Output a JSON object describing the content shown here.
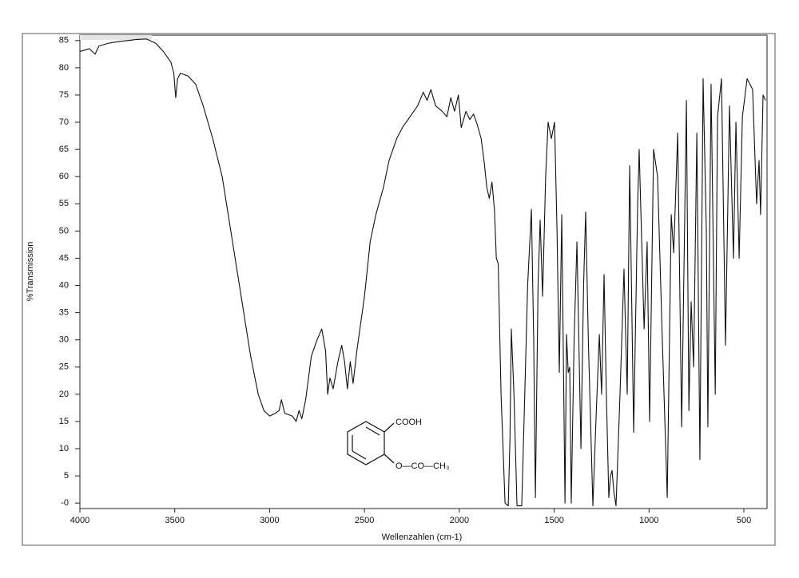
{
  "chart_data": {
    "type": "line",
    "x_label": "Wellenzahlen (cm-1)",
    "y_label": "%Transmission",
    "color": "#111111",
    "xlim": [
      4000,
      378
    ],
    "ylim": [
      -1,
      86
    ],
    "xticks": [
      4000,
      3500,
      3000,
      2500,
      2000,
      1500,
      1000,
      500
    ],
    "yticks": [
      {
        "value": 0,
        "label": "-0"
      },
      5,
      10,
      15,
      20,
      25,
      30,
      35,
      40,
      45,
      50,
      55,
      60,
      65,
      70,
      75,
      80,
      85
    ],
    "x": [
      4000,
      3950,
      3920,
      3900,
      3850,
      3800,
      3750,
      3700,
      3650,
      3600,
      3560,
      3520,
      3505,
      3495,
      3485,
      3470,
      3430,
      3390,
      3350,
      3300,
      3250,
      3200,
      3150,
      3100,
      3060,
      3030,
      3000,
      2970,
      2950,
      2938,
      2920,
      2880,
      2860,
      2845,
      2830,
      2810,
      2780,
      2750,
      2725,
      2705,
      2694,
      2682,
      2665,
      2640,
      2620,
      2605,
      2590,
      2575,
      2560,
      2540,
      2500,
      2470,
      2440,
      2400,
      2370,
      2330,
      2300,
      2260,
      2220,
      2190,
      2170,
      2150,
      2125,
      2090,
      2065,
      2045,
      2025,
      2005,
      1990,
      1965,
      1945,
      1925,
      1905,
      1885,
      1870,
      1855,
      1842,
      1828,
      1815,
      1805,
      1795,
      1780,
      1759,
      1742,
      1733,
      1726,
      1712,
      1696,
      1671,
      1655,
      1640,
      1620,
      1608,
      1599,
      1585,
      1574,
      1561,
      1545,
      1532,
      1515,
      1498,
      1485,
      1473,
      1460,
      1443,
      1435,
      1426,
      1418,
      1410,
      1395,
      1380,
      1359,
      1345,
      1334,
      1320,
      1296,
      1280,
      1262,
      1250,
      1237,
      1225,
      1212,
      1203,
      1195,
      1185,
      1174,
      1153,
      1132,
      1115,
      1102,
      1081,
      1060,
      1052,
      1026,
      1010,
      997,
      976,
      955,
      930,
      904,
      883,
      870,
      849,
      828,
      803,
      790,
      778,
      765,
      748,
      732,
      715,
      698,
      690,
      673,
      651,
      639,
      618,
      597,
      576,
      555,
      542,
      525,
      508,
      483,
      454,
      433,
      420,
      412,
      399,
      386
    ],
    "values": [
      83,
      83.5,
      82.5,
      84,
      84.5,
      84.8,
      85,
      85.2,
      85.3,
      84.5,
      83,
      81,
      79,
      74.5,
      78,
      79,
      78.5,
      77,
      73,
      67,
      60,
      49,
      38,
      27,
      20,
      17,
      16,
      16.5,
      17,
      19,
      16.5,
      16,
      15,
      17,
      15.5,
      19,
      27,
      30,
      32,
      28,
      20,
      23,
      21,
      26,
      29,
      26,
      21,
      26,
      22,
      28,
      38,
      48,
      53,
      58,
      63,
      67,
      69,
      71,
      73,
      75.5,
      74,
      76,
      73,
      72,
      71,
      74.5,
      72,
      75,
      69,
      72,
      70.5,
      71.5,
      69.5,
      67,
      63,
      58,
      56,
      59,
      54,
      45,
      44,
      20,
      0,
      -0.5,
      12,
      32,
      20,
      -0.5,
      -0.5,
      20,
      40,
      54,
      30,
      1,
      40,
      52,
      38,
      60,
      70,
      67,
      70,
      50,
      24,
      53,
      0,
      31,
      24,
      25,
      0,
      30,
      48,
      10,
      40,
      53.5,
      30,
      -0.5,
      15,
      31,
      20,
      42,
      20,
      1,
      5,
      6,
      2,
      -0.5,
      20,
      43,
      20,
      62,
      13,
      55,
      65,
      32,
      48,
      15,
      65,
      60,
      30,
      1,
      53,
      46,
      68,
      14,
      74,
      17,
      37,
      25,
      68,
      8,
      78,
      50,
      14,
      77,
      20,
      71,
      78,
      29,
      73,
      45,
      70,
      45,
      71,
      78,
      76,
      55,
      63,
      53,
      75,
      74
    ]
  },
  "structure": {
    "group_1": "COOH",
    "group_2": "O—CO—CH₃"
  }
}
